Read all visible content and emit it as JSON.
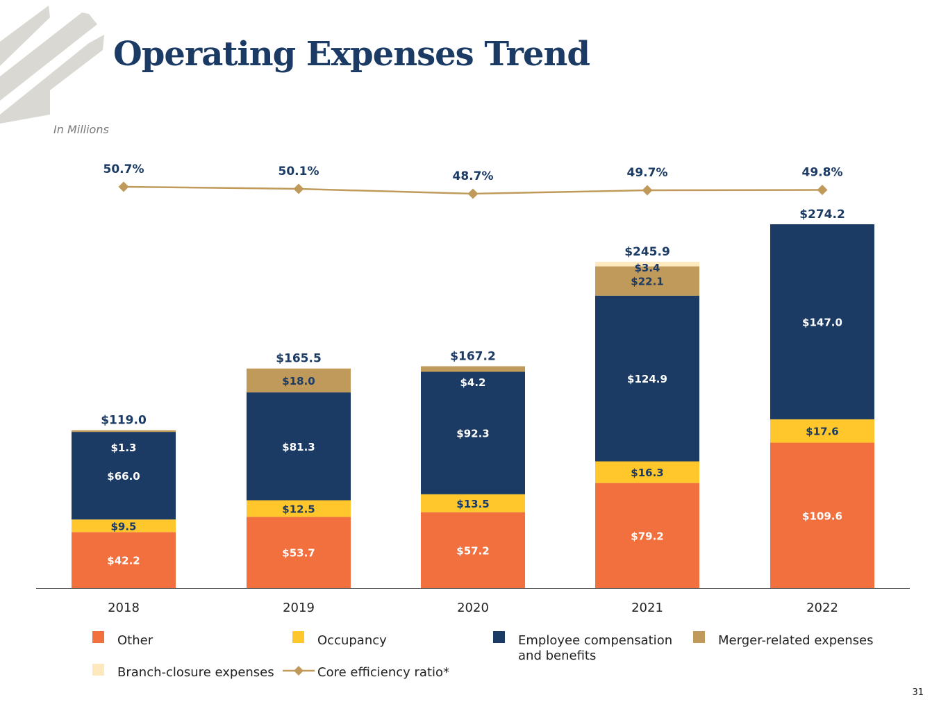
{
  "page": {
    "title": "Operating Expenses Trend",
    "subtitle": "In Millions",
    "page_number": "31"
  },
  "colors": {
    "Other": "#f26f3e",
    "Occupancy": "#ffc72c",
    "Employee": "#1b3a64",
    "Merger": "#bf9a5a",
    "Branch": "#fde9bd",
    "Ratio": "#bf9a5a",
    "Navy": "#1b3a64"
  },
  "legend": [
    {
      "key": "Other",
      "label": "Other"
    },
    {
      "key": "Occupancy",
      "label": "Occupancy"
    },
    {
      "key": "Employee",
      "label": "Employee compensation and benefits"
    },
    {
      "key": "Merger",
      "label": "Merger-related expenses"
    },
    {
      "key": "Branch",
      "label": "Branch-closure expenses"
    },
    {
      "key": "Ratio",
      "label": "Core efficiency ratio*"
    }
  ],
  "chart_data": {
    "type": "bar",
    "stacked": true,
    "categories": [
      "2018",
      "2019",
      "2020",
      "2021",
      "2022"
    ],
    "series": [
      {
        "name": "Other",
        "values": [
          42.2,
          53.7,
          57.2,
          79.2,
          109.6
        ],
        "labels": [
          "$42.2",
          "$53.7",
          "$57.2",
          "$79.2",
          "$109.6"
        ]
      },
      {
        "name": "Occupancy",
        "values": [
          9.5,
          12.5,
          13.5,
          16.3,
          17.6
        ],
        "labels": [
          "$9.5",
          "$12.5",
          "$13.5",
          "$16.3",
          "$17.6"
        ]
      },
      {
        "name": "Employee compensation and benefits",
        "values": [
          66.0,
          81.3,
          92.3,
          124.9,
          147.0
        ],
        "labels": [
          "$66.0",
          "$81.3",
          "$92.3",
          "$124.9",
          "$147.0"
        ]
      },
      {
        "name": "Merger-related expenses",
        "values": [
          1.3,
          18.0,
          4.2,
          22.1,
          0
        ],
        "labels": [
          "$1.3",
          "$18.0",
          "$4.2",
          "$22.1",
          ""
        ]
      },
      {
        "name": "Branch-closure expenses",
        "values": [
          0,
          0,
          0,
          3.4,
          0
        ],
        "labels": [
          "",
          "",
          "",
          "$3.4",
          ""
        ]
      }
    ],
    "totals": [
      "$119.0",
      "$165.5",
      "$167.2",
      "$245.9",
      "$274.2"
    ],
    "line": {
      "name": "Core efficiency ratio*",
      "values": [
        50.7,
        50.1,
        48.7,
        49.7,
        49.8
      ],
      "labels": [
        "50.7%",
        "50.1%",
        "48.7%",
        "49.7%",
        "49.8%"
      ]
    },
    "ylim": [
      0,
      300
    ],
    "grid": false,
    "legend_position": "bottom"
  }
}
